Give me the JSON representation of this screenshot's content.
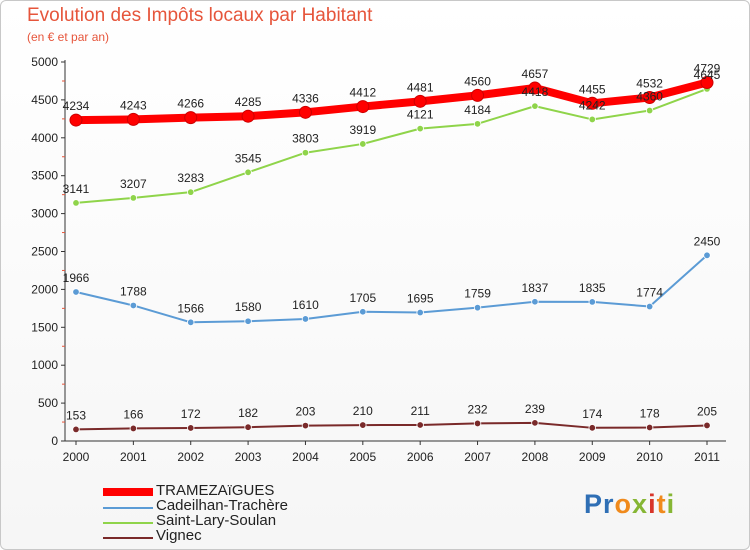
{
  "header": {
    "title": "Evolution des Impôts locaux par Habitant",
    "subtitle": "(en € et par an)"
  },
  "logo": {
    "text": "Proxiti",
    "colors": [
      "#2f6fb5",
      "#f08a1c",
      "#86b634",
      "#d8352a"
    ]
  },
  "chart_data": {
    "type": "line",
    "title": "Evolution des Impôts locaux par Habitant",
    "subtitle": "(en € et par an)",
    "x": [
      "2000",
      "2001",
      "2002",
      "2003",
      "2004",
      "2005",
      "2006",
      "2007",
      "2008",
      "2009",
      "2010",
      "2011"
    ],
    "ylim": [
      0,
      5000
    ],
    "yticks": [
      0,
      500,
      1000,
      1500,
      2000,
      2500,
      3000,
      3500,
      4000,
      4500,
      5000
    ],
    "grid": false,
    "legend": "bottom-left",
    "series": [
      {
        "name": "TRAMEZAïGUES",
        "color": "#ff0000",
        "emphasis": true,
        "values": [
          4234,
          4243,
          4266,
          4285,
          4336,
          4412,
          4481,
          4560,
          4657,
          4455,
          4532,
          4729
        ]
      },
      {
        "name": "Cadeilhan-Trachère",
        "color": "#5b9bd5",
        "values": [
          1966,
          1788,
          1566,
          1580,
          1610,
          1705,
          1695,
          1759,
          1837,
          1835,
          1774,
          2450
        ]
      },
      {
        "name": "Saint-Lary-Soulan",
        "color": "#8fd44a",
        "values": [
          3141,
          3207,
          3283,
          3545,
          3803,
          3919,
          4121,
          4184,
          4418,
          4242,
          4360,
          4645
        ]
      },
      {
        "name": "Vignec",
        "color": "#7a2a2a",
        "values": [
          153,
          166,
          172,
          182,
          203,
          210,
          211,
          232,
          239,
          174,
          178,
          205
        ]
      }
    ]
  }
}
